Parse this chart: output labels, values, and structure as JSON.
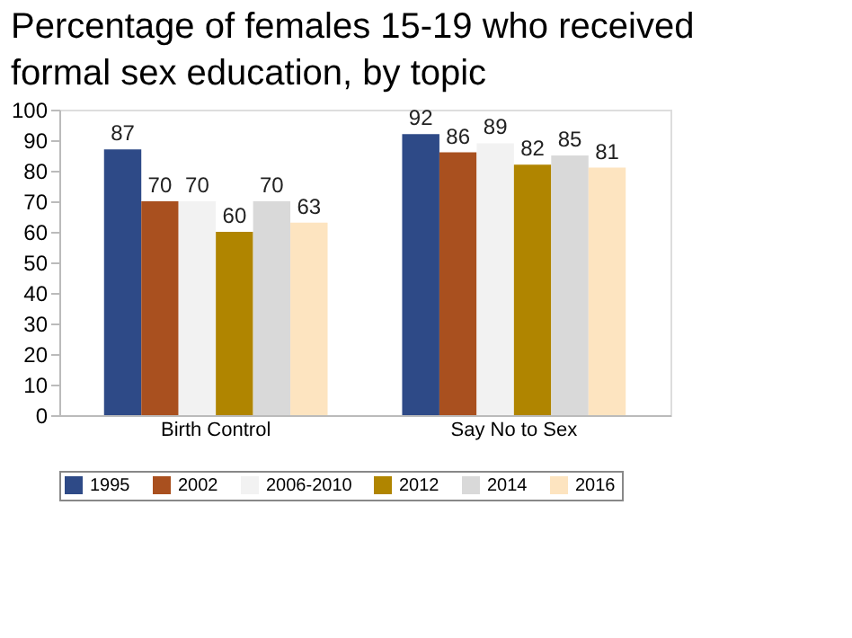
{
  "chart_data": {
    "type": "bar",
    "title": "Percentage of females 15-19 who received formal sex education, by topic",
    "categories": [
      "Birth Control",
      "Say No to Sex"
    ],
    "series": [
      {
        "name": "1995",
        "color": "#2e4a87",
        "values": [
          87,
          92
        ]
      },
      {
        "name": "2002",
        "color": "#a9501f",
        "values": [
          70,
          86
        ]
      },
      {
        "name": "2006-2010",
        "color": "#f2f2f2",
        "values": [
          70,
          89
        ]
      },
      {
        "name": "2012",
        "color": "#b08500",
        "values": [
          60,
          82
        ]
      },
      {
        "name": "2014",
        "color": "#d9d9d9",
        "values": [
          70,
          85
        ]
      },
      {
        "name": "2016",
        "color": "#fde4c0",
        "values": [
          63,
          81
        ]
      }
    ],
    "ylim": [
      0,
      100
    ],
    "yticks": [
      0,
      10,
      20,
      30,
      40,
      50,
      60,
      70,
      80,
      90,
      100
    ],
    "data_labels": true,
    "grid": false,
    "legend": "bottom"
  }
}
